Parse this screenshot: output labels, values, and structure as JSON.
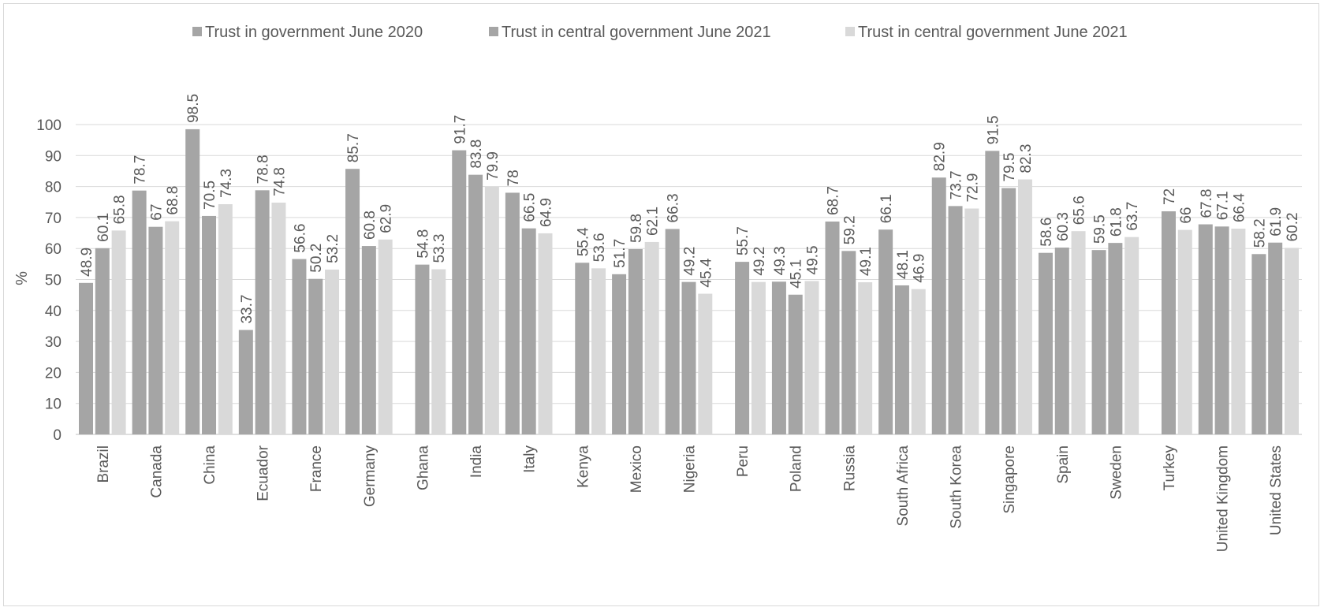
{
  "chart_data": {
    "type": "bar",
    "ylabel": "%",
    "xlabel": "",
    "title": "",
    "ylim": [
      0,
      100
    ],
    "yticks": [
      0,
      10,
      20,
      30,
      40,
      50,
      60,
      70,
      80,
      90,
      100
    ],
    "grid": true,
    "legend_position": "top",
    "categories": [
      "Brazil",
      "Canada",
      "China",
      "Ecuador",
      "France",
      "Germany",
      "Ghana",
      "India",
      "Italy",
      "Kenya",
      "Mexico",
      "Nigeria",
      "Peru",
      "Poland",
      "Russia",
      "South Africa",
      "South Korea",
      "Singapore",
      "Spain",
      "Sweden",
      "Turkey",
      "United Kingdom",
      "United States"
    ],
    "series": [
      {
        "name": "Trust in government June 2020",
        "color": "#a5a5a5",
        "values": [
          48.9,
          78.7,
          98.5,
          33.7,
          56.6,
          85.7,
          null,
          91.7,
          78,
          null,
          51.7,
          66.3,
          null,
          49.3,
          68.7,
          66.1,
          82.9,
          91.5,
          58.6,
          59.5,
          null,
          67.8,
          58.2
        ]
      },
      {
        "name": "Trust in central  government June 2021",
        "color": "#a5a5a5",
        "values": [
          60.1,
          67,
          70.5,
          78.8,
          50.2,
          60.8,
          54.8,
          83.8,
          66.5,
          55.4,
          59.8,
          49.2,
          55.7,
          45.1,
          59.2,
          48.1,
          73.7,
          79.5,
          60.3,
          61.8,
          72,
          67.1,
          61.9
        ]
      },
      {
        "name": "Trust in central  government June 2021",
        "color": "#d9d9d9",
        "values": [
          65.8,
          68.8,
          74.3,
          74.8,
          53.2,
          62.9,
          53.3,
          79.9,
          64.9,
          53.6,
          62.1,
          45.4,
          49.2,
          49.5,
          49.1,
          46.9,
          72.9,
          82.3,
          65.6,
          63.7,
          66,
          66.4,
          60.2
        ]
      }
    ]
  }
}
